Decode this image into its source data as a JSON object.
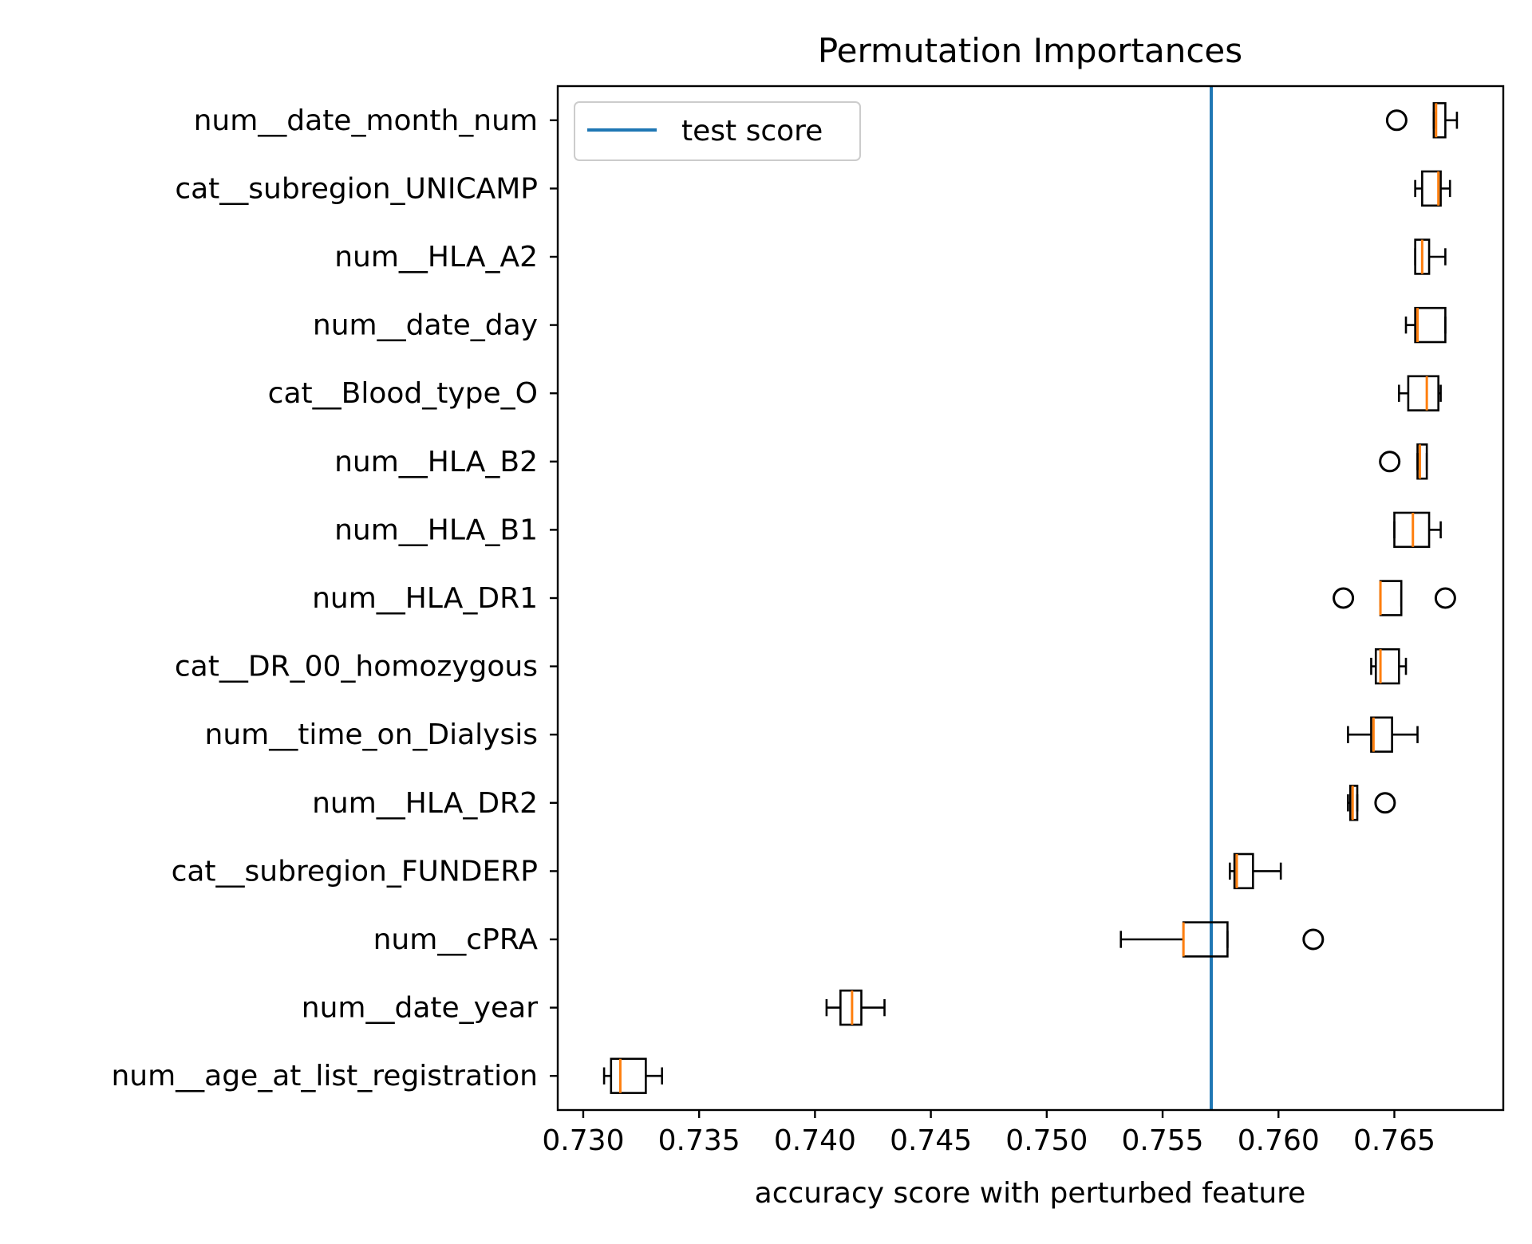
{
  "chart_data": {
    "type": "box",
    "orientation": "horizontal",
    "title": "Permutation Importances",
    "xlabel": "accuracy score with perturbed feature",
    "ylabel": "",
    "xlim": [
      0.7289,
      0.7697
    ],
    "xticks": [
      "0.730",
      "0.735",
      "0.740",
      "0.745",
      "0.750",
      "0.755",
      "0.760",
      "0.765"
    ],
    "legend": {
      "placement": "top-left",
      "entries": [
        {
          "label": "test score",
          "color": "#1f77b4"
        }
      ]
    },
    "reference_line": {
      "name": "test score",
      "x": 0.7571,
      "color": "#1f77b4"
    },
    "grid": false,
    "colors": {
      "box": "#000000",
      "median": "#ff7f0e",
      "test_line": "#1f77b4"
    },
    "series": [
      {
        "feature": "num__date_month_num",
        "whisker_low": 0.7667,
        "q1": 0.7667,
        "median": 0.7668,
        "q3": 0.7672,
        "whisker_high": 0.7677,
        "outliers": [
          0.7651
        ]
      },
      {
        "feature": "cat__subregion_UNICAMP",
        "whisker_low": 0.7659,
        "q1": 0.7662,
        "median": 0.7669,
        "q3": 0.767,
        "whisker_high": 0.7674,
        "outliers": []
      },
      {
        "feature": "num__HLA_A2",
        "whisker_low": 0.7659,
        "q1": 0.7659,
        "median": 0.7662,
        "q3": 0.7665,
        "whisker_high": 0.7672,
        "outliers": []
      },
      {
        "feature": "num__date_day",
        "whisker_low": 0.7655,
        "q1": 0.7659,
        "median": 0.766,
        "q3": 0.7672,
        "whisker_high": 0.7672,
        "outliers": []
      },
      {
        "feature": "cat__Blood_type_O",
        "whisker_low": 0.7652,
        "q1": 0.7656,
        "median": 0.7664,
        "q3": 0.7669,
        "whisker_high": 0.767,
        "outliers": []
      },
      {
        "feature": "num__HLA_B2",
        "whisker_low": 0.766,
        "q1": 0.766,
        "median": 0.7661,
        "q3": 0.7664,
        "whisker_high": 0.7664,
        "outliers": [
          0.7648
        ]
      },
      {
        "feature": "num__HLA_B1",
        "whisker_low": 0.765,
        "q1": 0.765,
        "median": 0.7658,
        "q3": 0.7665,
        "whisker_high": 0.767,
        "outliers": []
      },
      {
        "feature": "num__HLA_DR1",
        "whisker_low": 0.7644,
        "q1": 0.7644,
        "median": 0.7644,
        "q3": 0.7653,
        "whisker_high": 0.7653,
        "outliers": [
          0.7628,
          0.7672
        ]
      },
      {
        "feature": "cat__DR_00_homozygous",
        "whisker_low": 0.764,
        "q1": 0.7642,
        "median": 0.7644,
        "q3": 0.7652,
        "whisker_high": 0.7655,
        "outliers": []
      },
      {
        "feature": "num__time_on_Dialysis",
        "whisker_low": 0.763,
        "q1": 0.764,
        "median": 0.7641,
        "q3": 0.7649,
        "whisker_high": 0.766,
        "outliers": []
      },
      {
        "feature": "num__HLA_DR2",
        "whisker_low": 0.763,
        "q1": 0.7631,
        "median": 0.7632,
        "q3": 0.7634,
        "whisker_high": 0.7634,
        "outliers": [
          0.7646
        ]
      },
      {
        "feature": "cat__subregion_FUNDERP",
        "whisker_low": 0.7579,
        "q1": 0.7581,
        "median": 0.7582,
        "q3": 0.7589,
        "whisker_high": 0.7601,
        "outliers": []
      },
      {
        "feature": "num__cPRA",
        "whisker_low": 0.7532,
        "q1": 0.7559,
        "median": 0.7559,
        "q3": 0.7578,
        "whisker_high": 0.7578,
        "outliers": [
          0.7615
        ]
      },
      {
        "feature": "num__date_year",
        "whisker_low": 0.7405,
        "q1": 0.7411,
        "median": 0.7416,
        "q3": 0.742,
        "whisker_high": 0.743,
        "outliers": []
      },
      {
        "feature": "num__age_at_list_registration",
        "whisker_low": 0.7309,
        "q1": 0.7312,
        "median": 0.7316,
        "q3": 0.7327,
        "whisker_high": 0.7334,
        "outliers": []
      }
    ]
  }
}
